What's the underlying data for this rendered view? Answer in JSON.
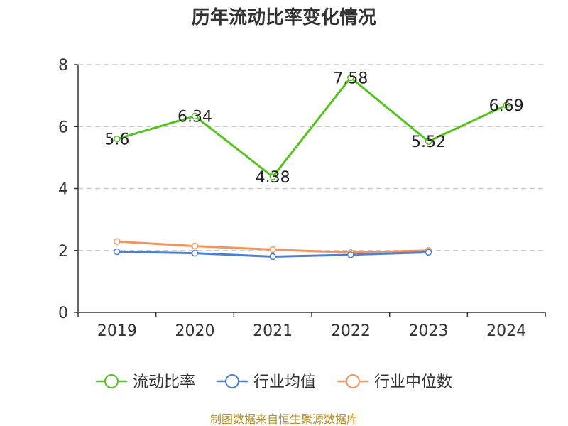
{
  "chart_data": {
    "type": "line",
    "title": "历年流动比率变化情况",
    "categories": [
      "2019",
      "2020",
      "2021",
      "2022",
      "2023",
      "2024"
    ],
    "ylim": [
      0,
      8
    ],
    "yticks": [
      0,
      2,
      4,
      6,
      8
    ],
    "grid": true,
    "legend_position": "bottom",
    "series": [
      {
        "name": "流动比率",
        "color": "#52c41a",
        "values": [
          5.6,
          6.34,
          4.38,
          7.58,
          5.52,
          6.69
        ],
        "labels": [
          "5.6",
          "6.34",
          "4.38",
          "7.58",
          "5.52",
          "6.69"
        ]
      },
      {
        "name": "行业均值",
        "color": "#4e7fd6",
        "values": [
          1.96,
          1.91,
          1.8,
          1.86,
          1.94,
          null
        ]
      },
      {
        "name": "行业中位数",
        "color": "#f4935a",
        "values": [
          2.29,
          2.14,
          2.03,
          1.93,
          2.0,
          null
        ]
      }
    ]
  },
  "footer": {
    "source": "制图数据来自恒生聚源数据库"
  }
}
